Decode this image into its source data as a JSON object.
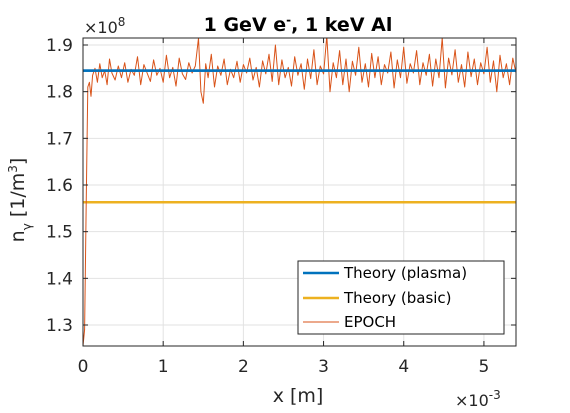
{
  "chart_data": {
    "type": "line",
    "title": "1 GeV e",
    "title_sup": "-",
    "title_rest": ", 1 keV Al",
    "xlabel": "x [m]",
    "ylabel_main": "n",
    "ylabel_sub": "γ",
    "ylabel_unit": "[1/m",
    "ylabel_unit_sup": "3",
    "ylabel_unit_close": "]",
    "x_multiplier_base": "×10",
    "x_multiplier_exp": "-3",
    "y_multiplier_base": "×10",
    "y_multiplier_exp": "8",
    "xlim": [
      0,
      5.4
    ],
    "ylim": [
      1.255,
      1.915
    ],
    "x_ticks": [
      0,
      1,
      2,
      3,
      4,
      5
    ],
    "x_tick_labels": [
      "0",
      "1",
      "2",
      "3",
      "4",
      "5"
    ],
    "y_ticks": [
      1.3,
      1.4,
      1.5,
      1.6,
      1.7,
      1.8,
      1.9
    ],
    "y_tick_labels": [
      "1.3",
      "1.4",
      "1.5",
      "1.6",
      "1.7",
      "1.8",
      "1.9"
    ],
    "grid": true,
    "legend_position": "bottom-right",
    "series": [
      {
        "name": "Theory (plasma)",
        "kind": "constant",
        "value": 1.845,
        "color": "#0072BD",
        "width": 2.5
      },
      {
        "name": "Theory (basic)",
        "kind": "constant",
        "value": 1.563,
        "color": "#EDB120",
        "width": 2.5
      },
      {
        "name": "EPOCH",
        "kind": "line",
        "color": "#D95319",
        "width": 1,
        "x": [
          0.0,
          0.02,
          0.04,
          0.06,
          0.08,
          0.1,
          0.12,
          0.15,
          0.18,
          0.21,
          0.24,
          0.27,
          0.3,
          0.33,
          0.36,
          0.4,
          0.44,
          0.48,
          0.52,
          0.56,
          0.6,
          0.64,
          0.68,
          0.72,
          0.76,
          0.8,
          0.84,
          0.88,
          0.92,
          0.96,
          1.0,
          1.04,
          1.08,
          1.12,
          1.16,
          1.2,
          1.24,
          1.28,
          1.32,
          1.36,
          1.4,
          1.44,
          1.47,
          1.5,
          1.53,
          1.56,
          1.6,
          1.64,
          1.68,
          1.72,
          1.76,
          1.8,
          1.84,
          1.88,
          1.92,
          1.96,
          2.0,
          2.04,
          2.08,
          2.12,
          2.16,
          2.2,
          2.24,
          2.28,
          2.32,
          2.36,
          2.4,
          2.44,
          2.48,
          2.52,
          2.56,
          2.6,
          2.64,
          2.68,
          2.72,
          2.76,
          2.8,
          2.84,
          2.88,
          2.92,
          2.96,
          3.0,
          3.04,
          3.08,
          3.12,
          3.16,
          3.2,
          3.24,
          3.28,
          3.32,
          3.36,
          3.4,
          3.44,
          3.48,
          3.52,
          3.56,
          3.6,
          3.64,
          3.68,
          3.72,
          3.76,
          3.8,
          3.84,
          3.88,
          3.92,
          3.96,
          4.0,
          4.04,
          4.08,
          4.12,
          4.16,
          4.2,
          4.24,
          4.28,
          4.32,
          4.36,
          4.4,
          4.44,
          4.48,
          4.52,
          4.56,
          4.6,
          4.64,
          4.68,
          4.72,
          4.76,
          4.8,
          4.84,
          4.88,
          4.92,
          4.96,
          5.0,
          5.04,
          5.08,
          5.12,
          5.16,
          5.2,
          5.24,
          5.28,
          5.32,
          5.36,
          5.4
        ],
        "y": [
          1.255,
          1.29,
          1.56,
          1.81,
          1.82,
          1.79,
          1.835,
          1.85,
          1.82,
          1.86,
          1.83,
          1.845,
          1.815,
          1.87,
          1.84,
          1.825,
          1.855,
          1.83,
          1.862,
          1.82,
          1.848,
          1.835,
          1.875,
          1.815,
          1.858,
          1.84,
          1.822,
          1.868,
          1.835,
          1.85,
          1.82,
          1.878,
          1.83,
          1.852,
          1.812,
          1.872,
          1.838,
          1.826,
          1.862,
          1.84,
          1.855,
          1.915,
          1.8,
          1.775,
          1.86,
          1.83,
          1.88,
          1.81,
          1.855,
          1.835,
          1.87,
          1.815,
          1.848,
          1.83,
          1.865,
          1.82,
          1.858,
          1.84,
          1.872,
          1.825,
          1.852,
          1.81,
          1.866,
          1.838,
          1.88,
          1.822,
          1.9,
          1.815,
          1.868,
          1.83,
          1.852,
          1.812,
          1.875,
          1.835,
          1.86,
          1.805,
          1.87,
          1.828,
          1.89,
          1.815,
          1.855,
          1.838,
          1.92,
          1.8,
          1.862,
          1.83,
          1.888,
          1.815,
          1.87,
          1.8,
          1.865,
          1.835,
          1.895,
          1.82,
          1.86,
          1.81,
          1.882,
          1.83,
          1.875,
          1.815,
          1.858,
          1.84,
          1.885,
          1.808,
          1.868,
          1.83,
          1.895,
          1.818,
          1.86,
          1.84,
          1.888,
          1.815,
          1.862,
          1.835,
          1.88,
          1.812,
          1.87,
          1.83,
          1.915,
          1.808,
          1.872,
          1.836,
          1.89,
          1.82,
          1.858,
          1.81,
          1.885,
          1.832,
          1.87,
          1.815,
          1.862,
          1.838,
          1.895,
          1.82,
          1.866,
          1.8,
          1.878,
          1.83,
          1.86,
          1.815,
          1.872,
          1.84
        ]
      }
    ]
  }
}
